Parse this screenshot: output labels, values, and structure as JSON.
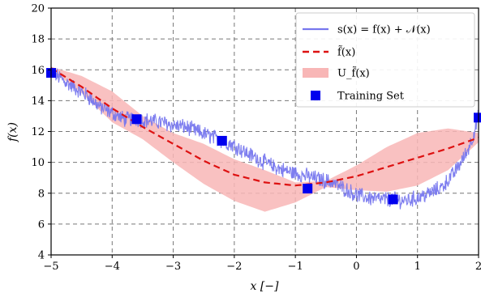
{
  "chart_data": {
    "type": "line",
    "xlabel": "x [−]",
    "ylabel": "f(x)",
    "xlim": [
      -5,
      2
    ],
    "ylim": [
      4,
      20
    ],
    "xticks": [
      -5,
      -4,
      -3,
      -2,
      -1,
      0,
      1,
      2
    ],
    "xtick_labels": [
      "−5",
      "−4",
      "−3",
      "−2",
      "−1",
      "0",
      "1",
      "2"
    ],
    "yticks": [
      4,
      6,
      8,
      10,
      12,
      14,
      16,
      18,
      20
    ],
    "ytick_labels": [
      "4",
      "6",
      "8",
      "10",
      "12",
      "14",
      "16",
      "18",
      "20"
    ],
    "grid": true,
    "legend_position": "top-right",
    "legend": [
      {
        "label": "s(x) = f(x) + 𝒩(x)",
        "style": "line",
        "color": "#7777ee"
      },
      {
        "label": "f̃(x)",
        "style": "dashed",
        "color": "#dd1111"
      },
      {
        "label": "U_f̃(x)",
        "style": "band",
        "color": "#f8b6b6"
      },
      {
        "label": "Training Set",
        "style": "marker",
        "color": "#0000ee"
      }
    ],
    "series": [
      {
        "name": "s(x) = f(x) + 𝒩(x)",
        "kind": "noisy_line",
        "color": "#7777ee",
        "x": [
          -5.0,
          -4.8,
          -4.6,
          -4.4,
          -4.2,
          -4.0,
          -3.8,
          -3.6,
          -3.4,
          -3.2,
          -3.0,
          -2.8,
          -2.6,
          -2.4,
          -2.2,
          -2.0,
          -1.8,
          -1.6,
          -1.4,
          -1.2,
          -1.0,
          -0.8,
          -0.6,
          -0.4,
          -0.2,
          0.0,
          0.2,
          0.4,
          0.6,
          0.8,
          1.0,
          1.2,
          1.4,
          1.6,
          1.8,
          1.9,
          2.0
        ],
        "y": [
          15.9,
          15.3,
          14.8,
          14.3,
          13.6,
          13.2,
          12.8,
          12.8,
          12.7,
          12.6,
          12.4,
          12.3,
          12.0,
          11.7,
          11.4,
          11.1,
          10.6,
          10.2,
          9.8,
          9.5,
          9.3,
          9.1,
          8.9,
          8.7,
          8.3,
          7.9,
          7.7,
          7.6,
          7.6,
          7.5,
          7.7,
          8.0,
          8.4,
          9.3,
          10.6,
          11.6,
          13.0
        ],
        "noise_amplitude": 0.45
      },
      {
        "name": "f̃(x)",
        "kind": "dashed_line",
        "color": "#dd1111",
        "x": [
          -5.0,
          -4.5,
          -4.0,
          -3.5,
          -3.0,
          -2.5,
          -2.0,
          -1.5,
          -1.0,
          -0.5,
          0.0,
          0.5,
          1.0,
          1.5,
          2.0
        ],
        "y": [
          16.1,
          14.9,
          13.5,
          12.3,
          11.2,
          10.1,
          9.2,
          8.7,
          8.5,
          8.7,
          9.1,
          9.7,
          10.3,
          10.9,
          11.6
        ]
      },
      {
        "name": "U_f̃(x)",
        "kind": "band",
        "color": "#f8b6b6",
        "x": [
          -5.0,
          -4.5,
          -4.0,
          -3.5,
          -3.0,
          -2.5,
          -2.0,
          -1.5,
          -1.0,
          -0.5,
          0.0,
          0.5,
          1.0,
          1.5,
          2.0
        ],
        "upper": [
          16.2,
          15.6,
          14.6,
          13.0,
          11.9,
          11.2,
          10.2,
          9.5,
          8.7,
          8.8,
          9.8,
          11.0,
          11.9,
          12.2,
          11.9
        ],
        "lower": [
          16.0,
          14.5,
          12.6,
          11.5,
          10.0,
          8.6,
          7.5,
          6.8,
          7.4,
          8.4,
          8.2,
          8.1,
          8.5,
          9.5,
          11.3
        ]
      },
      {
        "name": "Training Set",
        "kind": "markers",
        "color": "#0000ee",
        "x": [
          -5.0,
          -3.6,
          -2.2,
          -0.8,
          0.6,
          2.0
        ],
        "y": [
          15.8,
          12.8,
          11.4,
          8.3,
          7.6,
          12.9
        ]
      }
    ]
  }
}
